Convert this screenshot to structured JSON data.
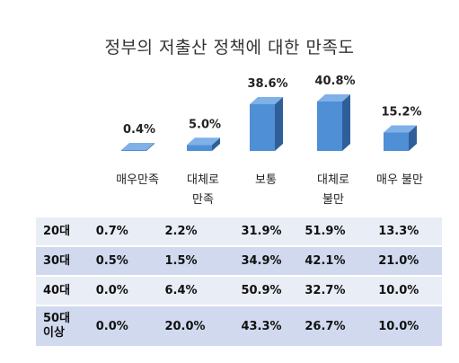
{
  "title": "정부의 저출산 정책에 대한 만족도",
  "chart_data": {
    "type": "bar",
    "title": "정부의 저출산 정책에 대한 만족도",
    "categories": [
      "매우만족",
      "대체로\n만족",
      "보통",
      "대체로\n불만",
      "매우 불만"
    ],
    "values": [
      0.4,
      5.0,
      38.6,
      40.8,
      15.2
    ],
    "value_labels": [
      "0.4%",
      "5.0%",
      "38.6%",
      "40.8%",
      "15.2%"
    ],
    "color": "#4f8fd6",
    "style": "3d-column",
    "ylim": [
      0,
      45
    ],
    "grid": false,
    "legend": "none"
  },
  "table": {
    "rows": [
      {
        "label": "20대",
        "cells": [
          "0.7%",
          "2.2%",
          "31.9%",
          "51.9%",
          "13.3%"
        ]
      },
      {
        "label": "30대",
        "cells": [
          "0.5%",
          "1.5%",
          "34.9%",
          "42.1%",
          "21.0%"
        ]
      },
      {
        "label": "40대",
        "cells": [
          "0.0%",
          "6.4%",
          "50.9%",
          "32.7%",
          "10.0%"
        ]
      },
      {
        "label": "50대\n이상",
        "cells": [
          "0.0%",
          "20.0%",
          "43.3%",
          "26.7%",
          "10.0%"
        ]
      }
    ]
  }
}
